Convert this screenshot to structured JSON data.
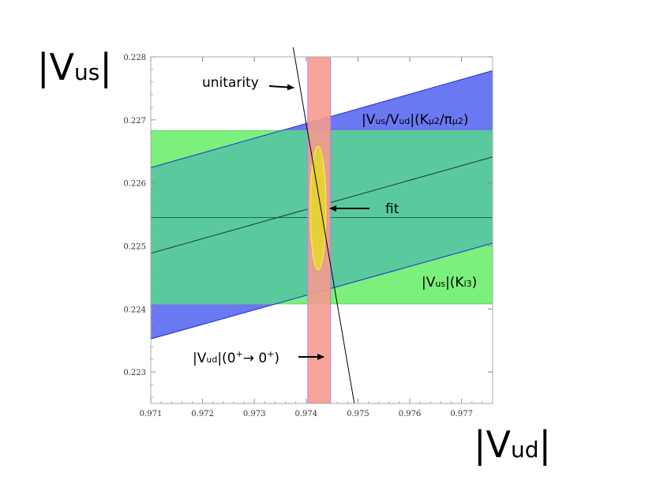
{
  "chart_data": {
    "type": "band-plot",
    "xlabel": "|Vud|",
    "ylabel": "|Vus|",
    "xlim": [
      0.971,
      0.9776
    ],
    "ylim": [
      0.2225,
      0.228
    ],
    "xticks": [
      "0.971",
      "0.972",
      "0.973",
      "0.974",
      "0.975",
      "0.976",
      "0.977"
    ],
    "yticks": [
      "0.223",
      "0.224",
      "0.225",
      "0.226",
      "0.227",
      "0.228"
    ],
    "bands": [
      {
        "name": "|Vus|(Kl3)",
        "kind": "horizontal",
        "center": 0.22545,
        "low": 0.22408,
        "high": 0.22683,
        "color": "#7cf07c"
      },
      {
        "name": "|Vus/Vud|(Kμ2/πμ2)",
        "kind": "sloped",
        "ratio": 0.2316,
        "ratio_low": 0.2302,
        "ratio_high": 0.233,
        "color": "#6a78f2",
        "edge": "#1a2bd8"
      },
      {
        "name": "|Vud|(0+→0+)",
        "kind": "vertical",
        "center": 0.97425,
        "low": 0.97403,
        "high": 0.97447,
        "color": "#f59a8e",
        "edge": "#c874ff"
      }
    ],
    "unitarity": {
      "x_at_top": 0.97381,
      "x_at_bottom": 0.97493
    },
    "fit": {
      "x": 0.97423,
      "y": 0.2256,
      "sx": 0.00015,
      "sy": 0.00098,
      "color": "#e6d72a",
      "edge": "#f2e84a"
    },
    "annotations": {
      "unitarity": "unitarity",
      "fit": "fit",
      "kmu2": {
        "a": "|V",
        "b": "us",
        "c": "/V",
        "d": "ud",
        "e": "|(K",
        "f": "μ2",
        "g": "/π",
        "h": "μ2",
        "i": ")"
      },
      "kl3": {
        "a": "|V",
        "b": "us",
        "c": "|(K",
        "d": "l3",
        "e": ")"
      },
      "vud": {
        "a": "|V",
        "b": "ud",
        "c": "|(0",
        "d": "+",
        "e": "→ 0",
        "f": "+",
        "g": ")"
      }
    }
  },
  "labels": {
    "y_big": {
      "main": "|V",
      "sub": "us",
      "end": "|"
    },
    "x_big": {
      "main": "|V",
      "sub": "ud",
      "end": "|"
    }
  }
}
